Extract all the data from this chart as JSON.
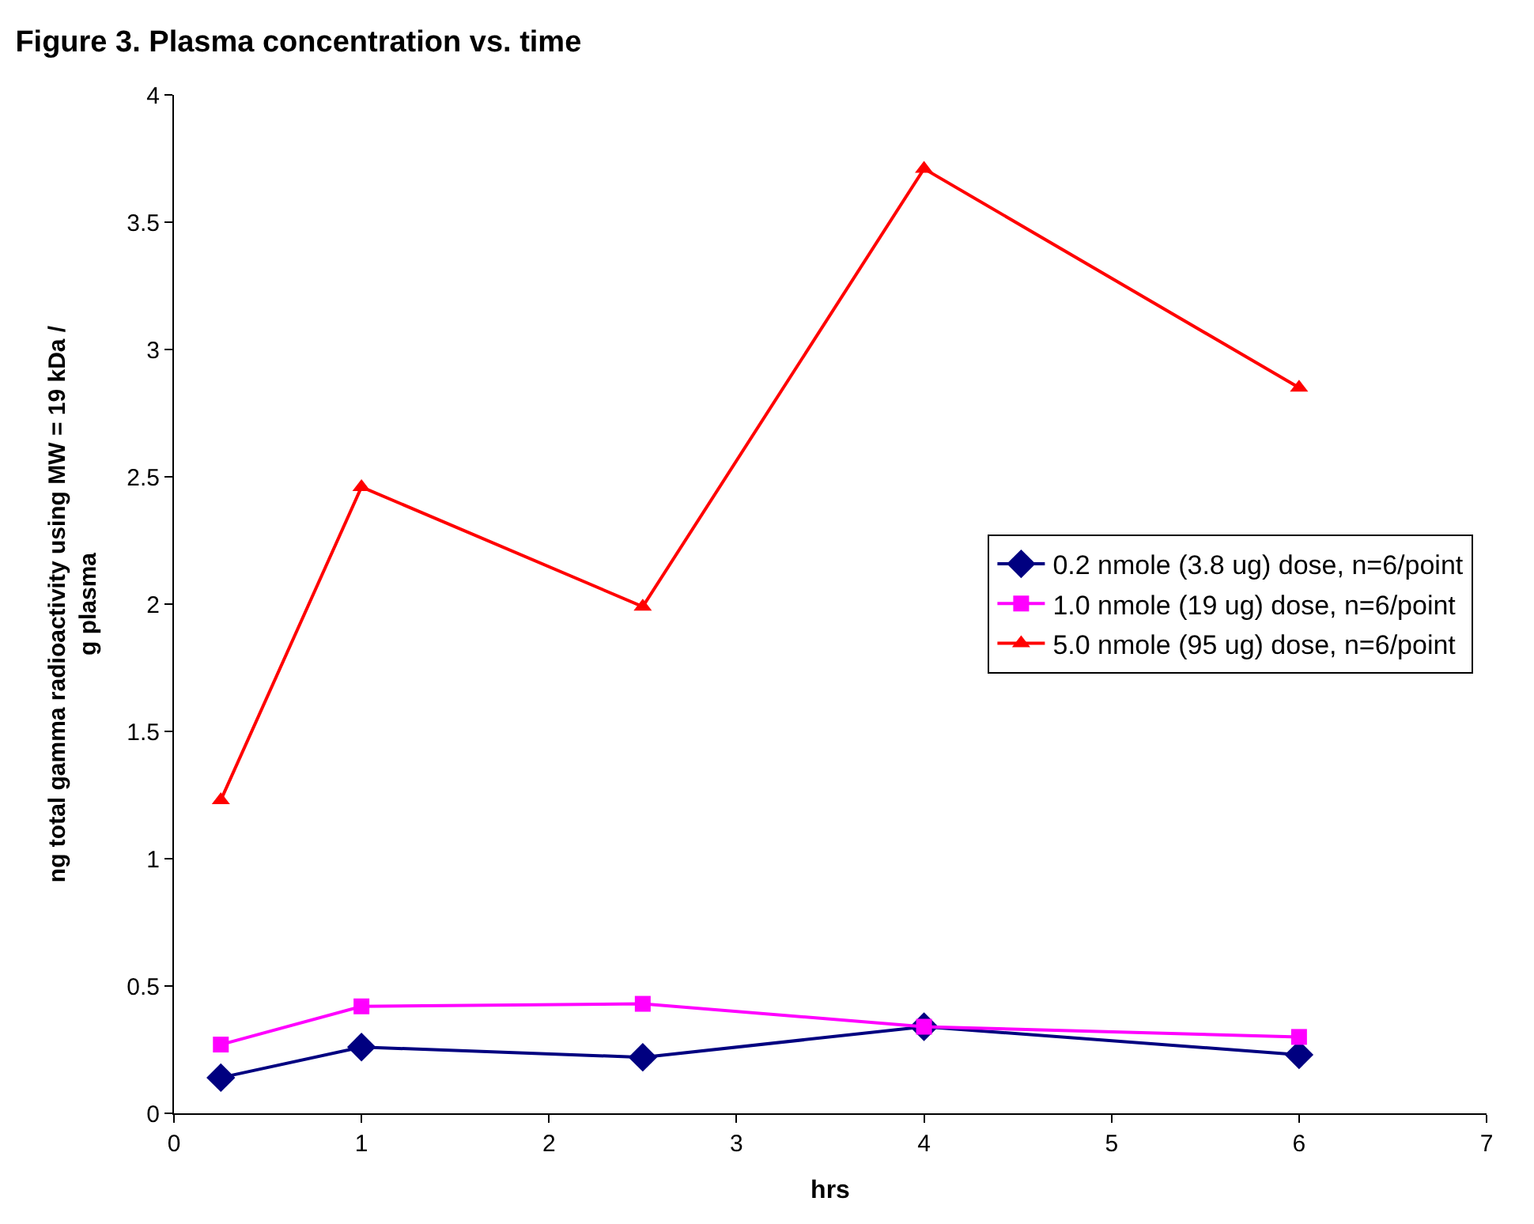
{
  "chart_data": {
    "type": "line",
    "title": "Figure 3. Plasma concentration vs. time",
    "xlabel": "hrs",
    "ylabel": "ng total gamma radioactivity using MW = 19 kDa /\ng plasma",
    "x": [
      0.25,
      1,
      2.5,
      4,
      6
    ],
    "series": [
      {
        "name": "0.2 nmole (3.8 ug) dose, n=6/point",
        "color": "#000080",
        "marker": "diamond",
        "values": [
          0.14,
          0.26,
          0.22,
          0.34,
          0.23
        ]
      },
      {
        "name": "1.0 nmole (19 ug) dose, n=6/point",
        "color": "#ff00ff",
        "marker": "square",
        "values": [
          0.27,
          0.42,
          0.43,
          0.34,
          0.3
        ]
      },
      {
        "name": "5.0 nmole (95 ug) dose, n=6/point",
        "color": "#ff0000",
        "marker": "triangle",
        "values": [
          1.23,
          2.46,
          1.99,
          3.71,
          2.85
        ]
      }
    ],
    "xlim": [
      0,
      7
    ],
    "xticks": [
      0,
      1,
      2,
      3,
      4,
      5,
      6,
      7
    ],
    "ylim": [
      0,
      4
    ],
    "yticks": [
      0,
      0.5,
      1,
      1.5,
      2,
      2.5,
      3,
      3.5,
      4
    ],
    "legend": "right",
    "line_style": "solid"
  }
}
